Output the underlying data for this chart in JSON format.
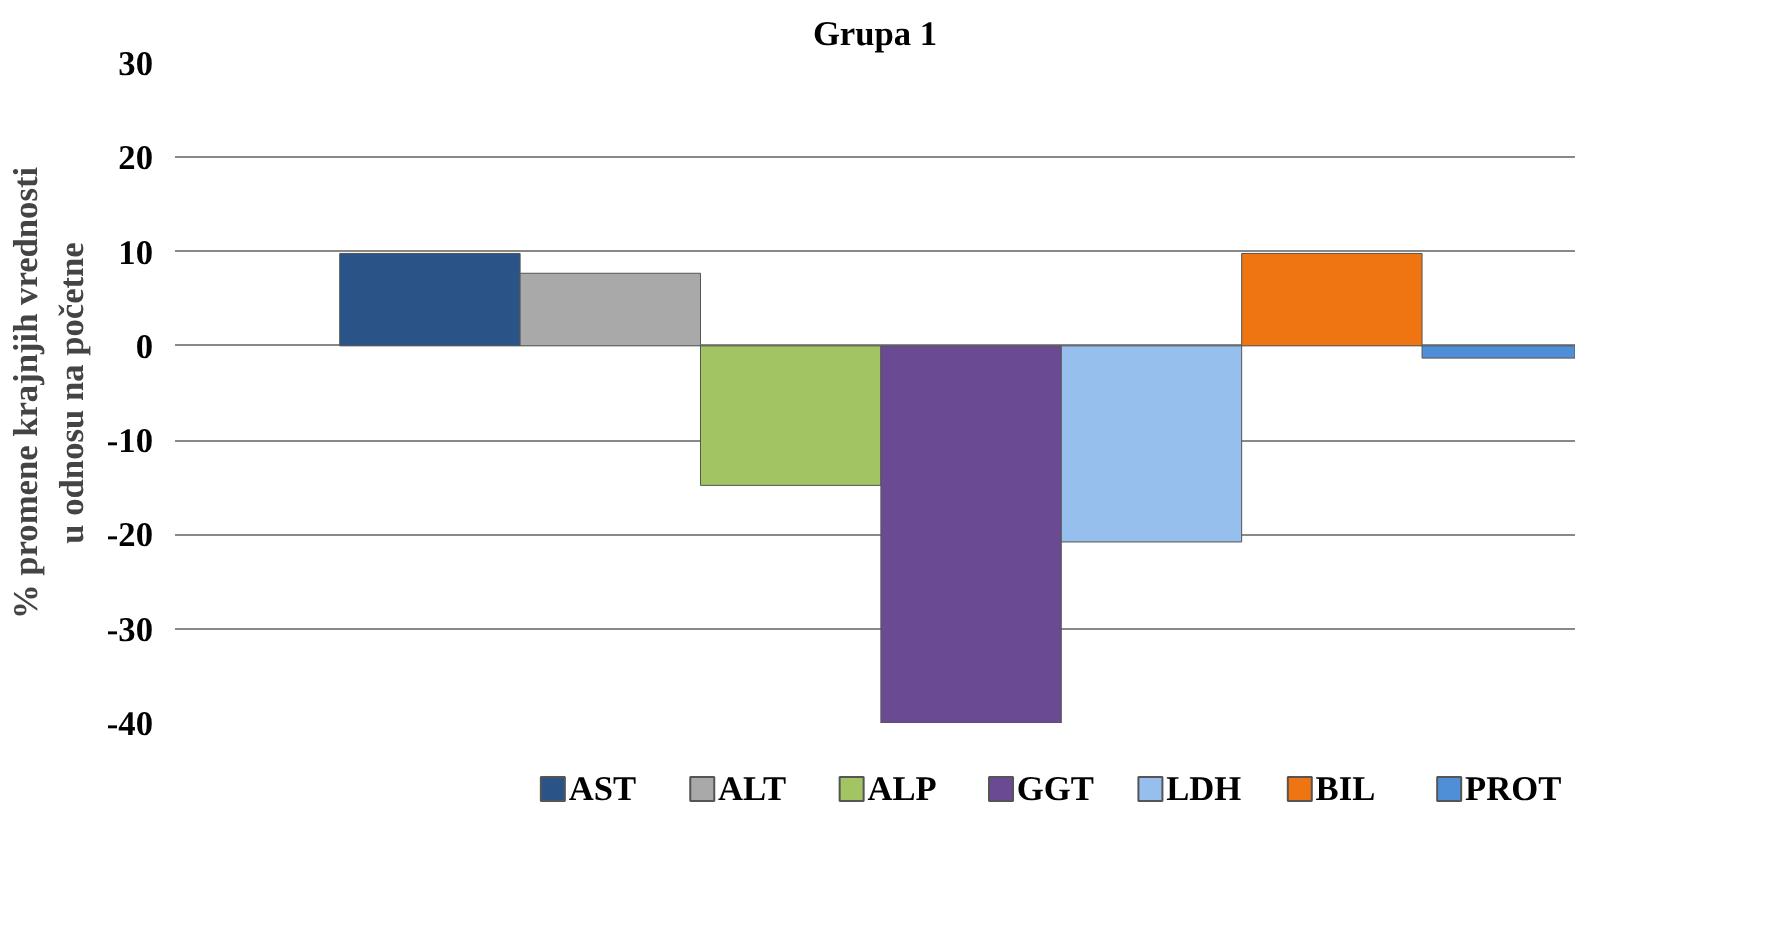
{
  "chart_data": {
    "type": "bar",
    "title": "Grupa 1",
    "ylabel": "% promene krajnjih vrednosti\nu odnosu na početne",
    "categories": [
      null
    ],
    "series": [
      {
        "name": "AST",
        "color": "#2a5488",
        "values": [
          9.8
        ]
      },
      {
        "name": "ALT",
        "color": "#a9a9a9",
        "values": [
          7.7
        ]
      },
      {
        "name": "ALP",
        "color": "#a2c462",
        "values": [
          -14.8
        ]
      },
      {
        "name": "GGT",
        "color": "#6a4a92",
        "values": [
          -40
        ]
      },
      {
        "name": "LDH",
        "color": "#96bfee",
        "values": [
          -20.8
        ]
      },
      {
        "name": "BIL",
        "color": "#ee7511",
        "values": [
          9.8
        ]
      },
      {
        "name": "PROT",
        "color": "#4f8fd8",
        "values": [
          -1.3
        ]
      }
    ],
    "ylim": [
      -40,
      30
    ],
    "yticks": [
      -40,
      -30,
      -20,
      -10,
      0,
      10,
      20,
      30
    ],
    "grid": "y",
    "legend": "bottom",
    "tick_labels": "y"
  }
}
